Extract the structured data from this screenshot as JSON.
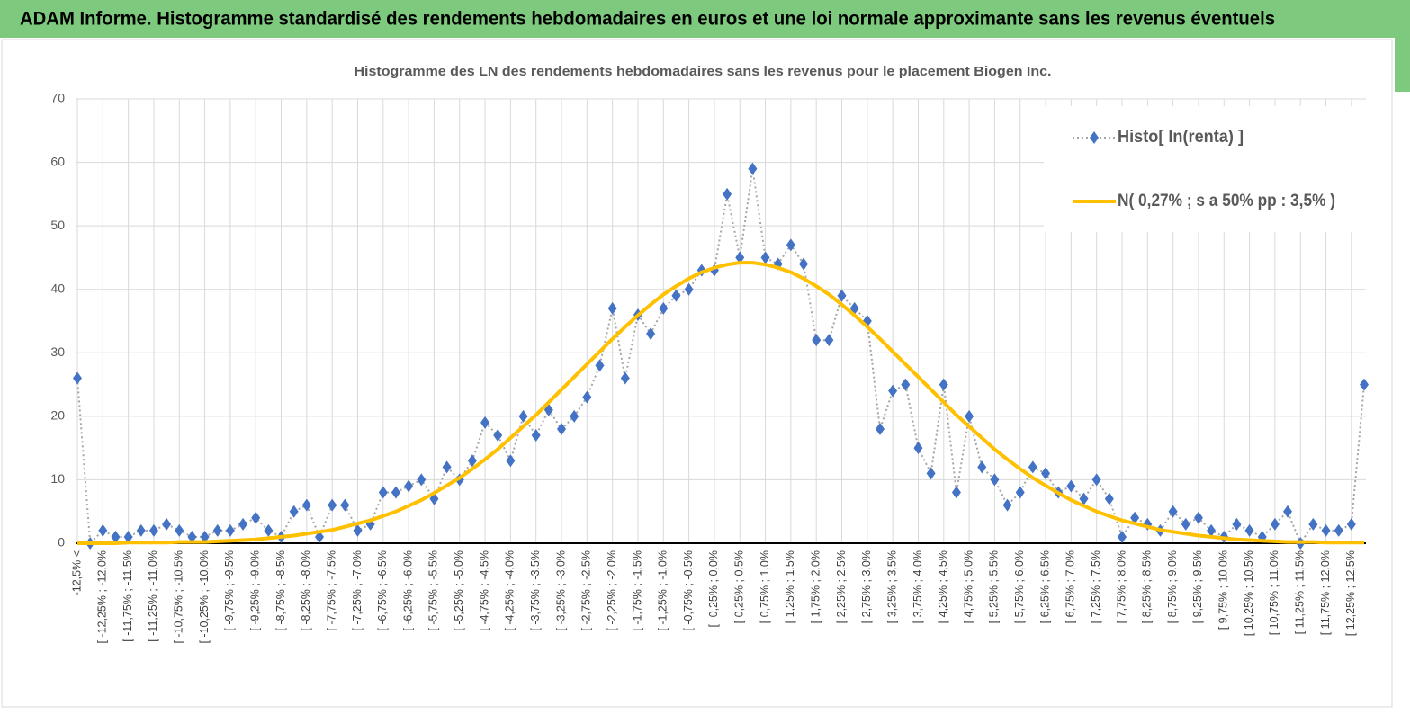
{
  "header": {
    "title": "ADAM Informe. Histogramme standardisé des rendements hebdomadaires en euros et une loi normale approximante sans les revenus éventuels"
  },
  "chart_data": {
    "type": "line",
    "title": "Histogramme des LN des rendements hebdomadaires sans les revenus pour le placement Biogen Inc.",
    "categories": [
      "-12,5% <",
      null,
      "[ -12,25% ; -12,0%",
      null,
      "[ -11,75% ; -11,5%",
      null,
      "[ -11,25% ; -11,0%",
      null,
      "[ -10,75% ; -10,5%",
      null,
      "[ -10,25% ; -10,0%",
      null,
      "[ -9,75% ; -9,5%",
      null,
      "[ -9,25% ; -9,0%",
      null,
      "[ -8,75% ; -8,5%",
      null,
      "[ -8,25% ; -8,0%",
      null,
      "[ -7,75% ; -7,5%",
      null,
      "[ -7,25% ; -7,0%",
      null,
      "[ -6,75% ; -6,5%",
      null,
      "[ -6,25% ; -6,0%",
      null,
      "[ -5,75% ; -5,5%",
      null,
      "[ -5,25% ; -5,0%",
      null,
      "[ -4,75% ; -4,5%",
      null,
      "[ -4,25% ; -4,0%",
      null,
      "[ -3,75% ; -3,5%",
      null,
      "[ -3,25% ; -3,0%",
      null,
      "[ -2,75% ; -2,5%",
      null,
      "[ -2,25% ; -2,0%",
      null,
      "[ -1,75% ; -1,5%",
      null,
      "[ -1,25% ; -1,0%",
      null,
      "[ -0,75% ; -0,5%",
      null,
      "[ -0,25% ; 0,0%",
      null,
      "[ 0,25% ; 0,5%",
      null,
      "[ 0,75% ; 1,0%",
      null,
      "[ 1,25% ; 1,5%",
      null,
      "[ 1,75% ; 2,0%",
      null,
      "[ 2,25% ; 2,5%",
      null,
      "[ 2,75% ; 3,0%",
      null,
      "[ 3,25% ; 3,5%",
      null,
      "[ 3,75% ; 4,0%",
      null,
      "[ 4,25% ; 4,5%",
      null,
      "[ 4,75% ; 5,0%",
      null,
      "[ 5,25% ; 5,5%",
      null,
      "[ 5,75% ; 6,0%",
      null,
      "[ 6,25% ; 6,5%",
      null,
      "[ 6,75% ; 7,0%",
      null,
      "[ 7,25% ; 7,5%",
      null,
      "[ 7,75% ; 8,0%",
      null,
      "[ 8,25% ; 8,5%",
      null,
      "[ 8,75% ; 9,0%",
      null,
      "[ 9,25% ; 9,5%",
      null,
      "[ 9,75% ; 10,0%",
      null,
      "[ 10,25% ; 10,5%",
      null,
      "[ 10,75% ; 11,0%",
      null,
      "[ 11,25% ; 11,5%",
      null,
      "[ 11,75% ; 12,0%",
      null,
      "[ 12,25% ; 12,5%",
      null
    ],
    "series": [
      {
        "name": "Histo[ ln(renta) ]",
        "color": "#4472c4",
        "marker": "diamond",
        "line_color": "#a6a6a6",
        "values": [
          26,
          0,
          2,
          1,
          1,
          2,
          2,
          3,
          2,
          1,
          1,
          2,
          2,
          3,
          4,
          2,
          1,
          5,
          6,
          1,
          6,
          6,
          2,
          3,
          8,
          8,
          9,
          10,
          7,
          12,
          10,
          13,
          19,
          17,
          13,
          20,
          17,
          21,
          18,
          20,
          23,
          28,
          37,
          26,
          36,
          33,
          37,
          39,
          40,
          43,
          43,
          55,
          45,
          59,
          45,
          44,
          47,
          44,
          32,
          32,
          39,
          37,
          35,
          18,
          24,
          25,
          15,
          11,
          25,
          8,
          20,
          12,
          10,
          6,
          8,
          12,
          11,
          8,
          9,
          7,
          10,
          7,
          1,
          4,
          3,
          2,
          5,
          3,
          4,
          2,
          1,
          3,
          2,
          1,
          3,
          5,
          0,
          3,
          2,
          2,
          3,
          25
        ]
      },
      {
        "name": "N( 0,27% ; s a 50% pp : 3,5% )",
        "color": "#ffc000",
        "values": [
          0.0,
          0.0,
          0.0,
          0.0,
          0.1,
          0.1,
          0.1,
          0.1,
          0.2,
          0.2,
          0.2,
          0.3,
          0.4,
          0.5,
          0.6,
          0.8,
          1.0,
          1.2,
          1.5,
          1.8,
          2.1,
          2.6,
          3.1,
          3.6,
          4.3,
          5.0,
          5.9,
          6.8,
          7.9,
          9.1,
          10.3,
          11.7,
          13.2,
          14.8,
          16.6,
          18.4,
          20.2,
          22.2,
          24.2,
          26.2,
          28.2,
          30.2,
          32.2,
          34.1,
          35.9,
          37.6,
          39.2,
          40.5,
          41.7,
          42.7,
          43.4,
          43.9,
          44.2,
          44.2,
          43.9,
          43.4,
          42.7,
          41.7,
          40.5,
          39.2,
          37.6,
          35.9,
          34.1,
          32.2,
          30.2,
          28.2,
          26.2,
          24.2,
          22.2,
          20.2,
          18.4,
          16.6,
          14.8,
          13.2,
          11.7,
          10.3,
          9.1,
          7.9,
          6.8,
          5.9,
          5.0,
          4.3,
          3.6,
          3.1,
          2.6,
          2.1,
          1.8,
          1.5,
          1.2,
          1.0,
          0.8,
          0.6,
          0.5,
          0.4,
          0.3,
          0.2,
          0.2,
          0.2,
          0.1,
          0.1,
          0.1,
          0.1
        ]
      }
    ],
    "ylim": [
      0,
      70
    ],
    "yticks": [
      0,
      10,
      20,
      30,
      40,
      50,
      60,
      70
    ],
    "grid": true,
    "legend": "top-right"
  }
}
